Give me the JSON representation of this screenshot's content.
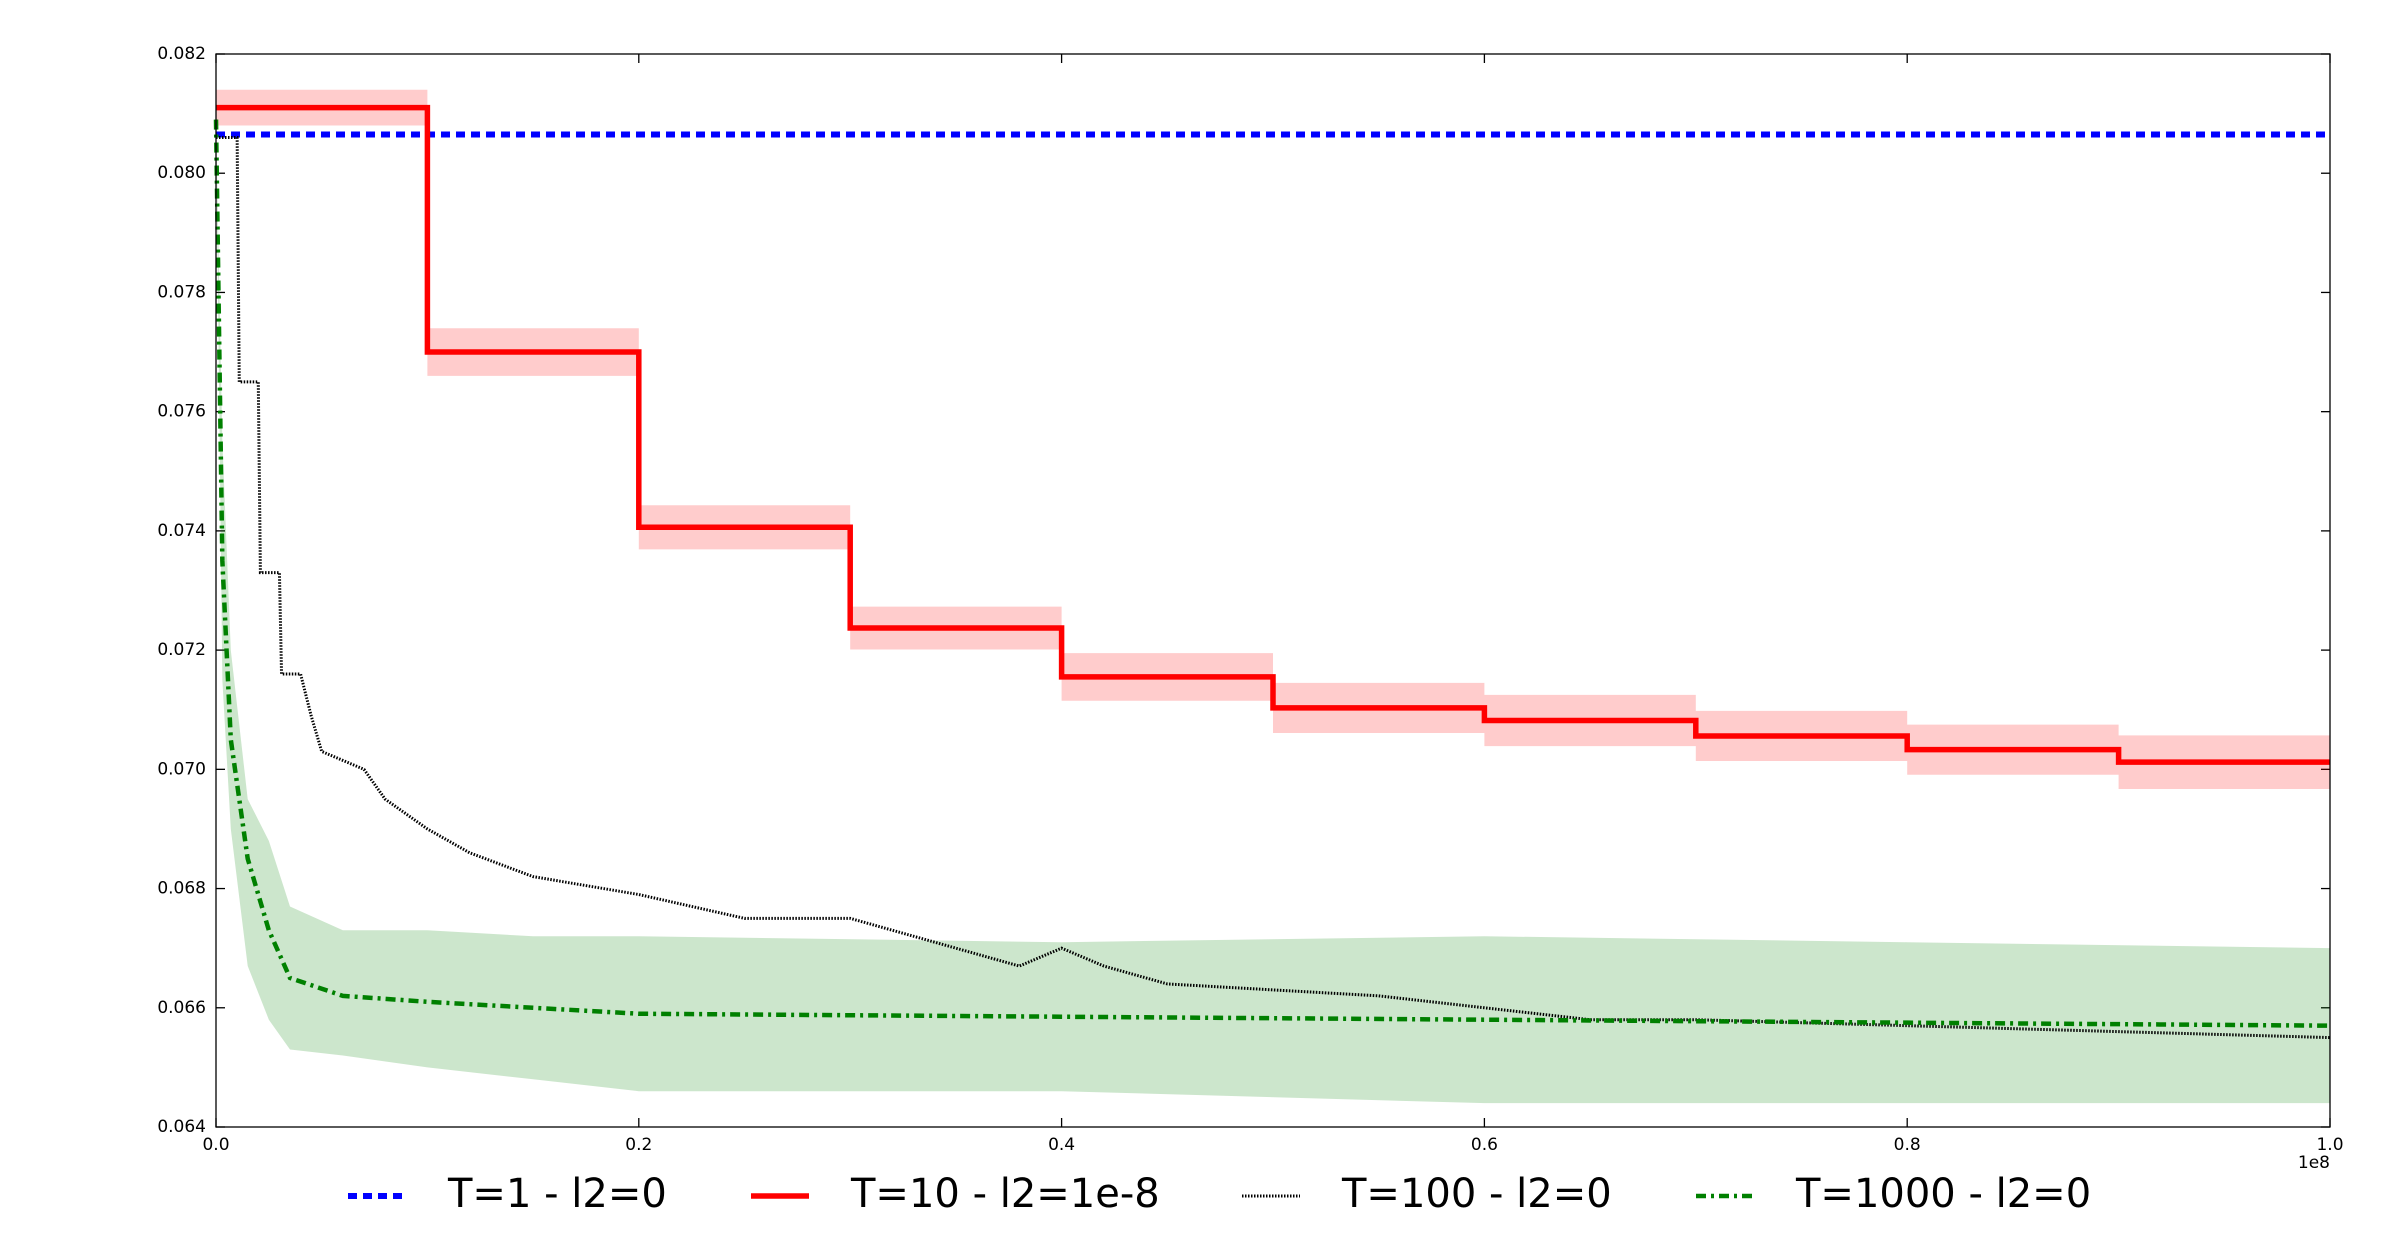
{
  "chart_data": {
    "type": "line",
    "x_offset_label": "1e8",
    "xlim": [
      0,
      1.0
    ],
    "xticks": [
      {
        "value": 0,
        "label": "0.0"
      },
      0.2,
      0.4,
      0.6,
      0.8,
      {
        "value": 1.0,
        "label": "1.0"
      }
    ],
    "ylim": [
      0.064,
      0.082
    ],
    "yticks": [
      0.064,
      0.066,
      0.068,
      {
        "value": 0.07,
        "label": "0.070"
      },
      0.072,
      0.074,
      0.076,
      0.078,
      {
        "value": 0.08,
        "label": "0.080"
      },
      0.082
    ],
    "legend": "bottom",
    "series": [
      {
        "name": "T=1 - l2=0",
        "color": "#0000ff",
        "style": "dashed",
        "x": [
          0,
          1.0
        ],
        "values": [
          0.08065,
          0.08065
        ]
      },
      {
        "name": "T=10 - l2=1e-8",
        "color": "#ff0000",
        "style": "solid",
        "band_color": "#ff0000",
        "x": [
          0,
          0.1,
          0.1,
          0.2,
          0.2,
          0.3,
          0.3,
          0.4,
          0.4,
          0.5,
          0.5,
          0.6,
          0.6,
          0.7,
          0.7,
          0.8,
          0.8,
          0.9,
          0.9,
          1.0
        ],
        "values": [
          0.0811,
          0.0811,
          0.077,
          0.077,
          0.07406,
          0.07406,
          0.07237,
          0.07237,
          0.07155,
          0.07155,
          0.07103,
          0.07103,
          0.07082,
          0.07082,
          0.07056,
          0.07056,
          0.07033,
          0.07033,
          0.07012,
          0.07012
        ],
        "upper": [
          0.0814,
          0.0814,
          0.0774,
          0.0774,
          0.07443,
          0.07443,
          0.07273,
          0.07273,
          0.07195,
          0.07195,
          0.07145,
          0.07145,
          0.07125,
          0.07125,
          0.07098,
          0.07098,
          0.07075,
          0.07075,
          0.07057,
          0.07057
        ],
        "lower": [
          0.0808,
          0.0808,
          0.0766,
          0.0766,
          0.07369,
          0.07369,
          0.07201,
          0.07201,
          0.07115,
          0.07115,
          0.07061,
          0.07061,
          0.07039,
          0.07039,
          0.07014,
          0.07014,
          0.06991,
          0.06991,
          0.06967,
          0.06967
        ]
      },
      {
        "name": "T=100 - l2=0",
        "color": "#000000",
        "style": "dotted",
        "x": [
          0,
          0.01,
          0.011,
          0.02,
          0.021,
          0.03,
          0.031,
          0.04,
          0.045,
          0.05,
          0.07,
          0.08,
          0.1,
          0.12,
          0.15,
          0.2,
          0.25,
          0.3,
          0.35,
          0.38,
          0.4,
          0.42,
          0.45,
          0.5,
          0.55,
          0.6,
          0.65,
          0.7,
          0.8,
          0.9,
          1.0
        ],
        "values": [
          0.0806,
          0.0806,
          0.0765,
          0.0765,
          0.0733,
          0.0733,
          0.0716,
          0.0716,
          0.0709,
          0.0703,
          0.07,
          0.0695,
          0.069,
          0.0686,
          0.0682,
          0.0679,
          0.0675,
          0.0675,
          0.067,
          0.0667,
          0.067,
          0.0667,
          0.0664,
          0.0663,
          0.0662,
          0.066,
          0.0658,
          0.0658,
          0.0657,
          0.0656,
          0.0655
        ]
      },
      {
        "name": "T=1000 - l2=0",
        "color": "#008000",
        "style": "dashdot",
        "band_color": "#008000",
        "x": [
          0,
          0.003,
          0.007,
          0.015,
          0.025,
          0.035,
          0.06,
          0.1,
          0.15,
          0.2,
          0.4,
          0.6,
          0.8,
          1.0
        ],
        "values": [
          0.0809,
          0.0735,
          0.0705,
          0.0685,
          0.0673,
          0.0665,
          0.0662,
          0.0661,
          0.066,
          0.0659,
          0.06585,
          0.0658,
          0.06575,
          0.0657
        ],
        "upper": [
          0.0809,
          0.0755,
          0.072,
          0.0695,
          0.0688,
          0.0677,
          0.0673,
          0.0673,
          0.0672,
          0.0672,
          0.0671,
          0.0672,
          0.0671,
          0.067
        ],
        "lower": [
          0.0809,
          0.0715,
          0.069,
          0.0667,
          0.0658,
          0.0653,
          0.0652,
          0.065,
          0.0648,
          0.0646,
          0.0646,
          0.0644,
          0.0644,
          0.0644
        ]
      }
    ]
  }
}
